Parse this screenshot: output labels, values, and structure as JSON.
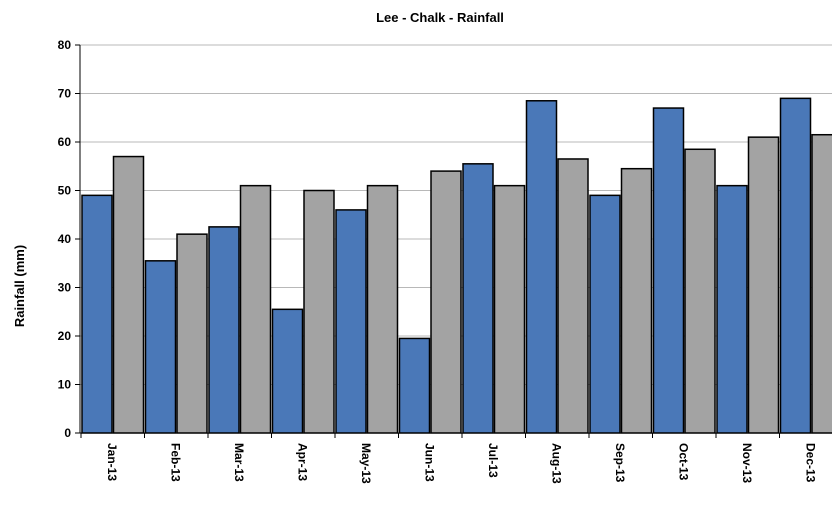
{
  "chart_data": {
    "type": "bar",
    "title": "Lee - Chalk - Rainfall",
    "xlabel": "",
    "ylabel": "Rainfall (mm)",
    "ylim": [
      0,
      80
    ],
    "yticks": [
      0,
      10,
      20,
      30,
      40,
      50,
      60,
      70,
      80
    ],
    "grid": true,
    "legend": "none",
    "categories": [
      "Jan-13",
      "Feb-13",
      "Mar-13",
      "Apr-13",
      "May-13",
      "Jun-13",
      "Jul-13",
      "Aug-13",
      "Sep-13",
      "Oct-13",
      "Nov-13",
      "Dec-13"
    ],
    "series": [
      {
        "color": "#4a78b8",
        "values": [
          49,
          35.5,
          42.5,
          25.5,
          46,
          19.5,
          55.5,
          68.5,
          49,
          67,
          51,
          69
        ]
      },
      {
        "color": "#a3a3a3",
        "values": [
          57,
          41,
          51,
          50,
          51,
          54,
          51,
          56.5,
          54.5,
          58.5,
          61,
          61.5
        ]
      }
    ]
  }
}
